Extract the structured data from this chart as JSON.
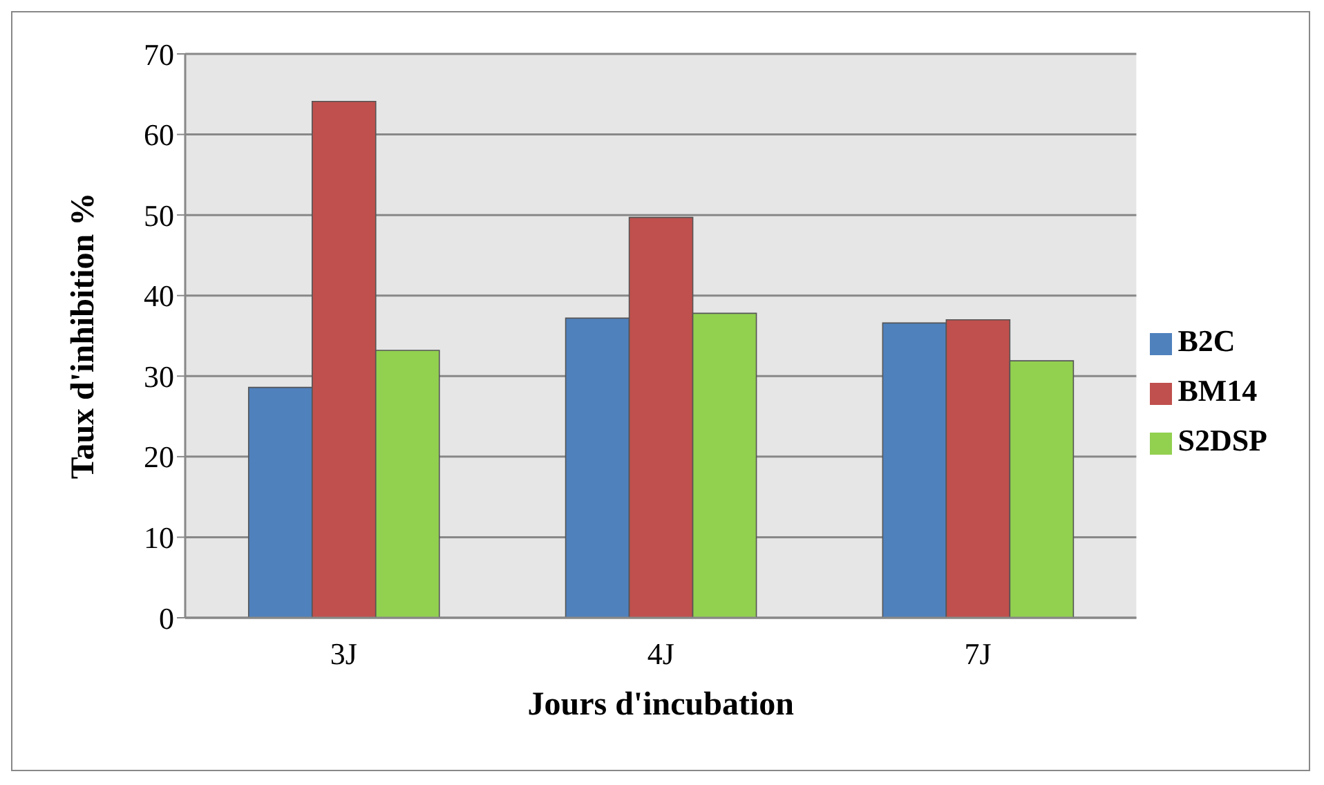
{
  "chart_data": {
    "type": "bar",
    "xlabel": "Jours d'incubation",
    "ylabel": "Taux d'inhibition %",
    "categories": [
      "3J",
      "4J",
      "7J"
    ],
    "series": [
      {
        "name": "B2C",
        "color": "#4f81bd",
        "values": [
          28.6,
          37.2,
          36.6
        ]
      },
      {
        "name": "BM14",
        "color": "#c0504d",
        "values": [
          64.1,
          49.7,
          37.0
        ]
      },
      {
        "name": "S2DSP",
        "color": "#92d050",
        "values": [
          33.2,
          37.8,
          31.9
        ]
      }
    ],
    "ylim": [
      0,
      70
    ],
    "yticks": [
      0,
      10,
      20,
      30,
      40,
      50,
      60,
      70
    ],
    "grid": "y",
    "legend": "right"
  }
}
